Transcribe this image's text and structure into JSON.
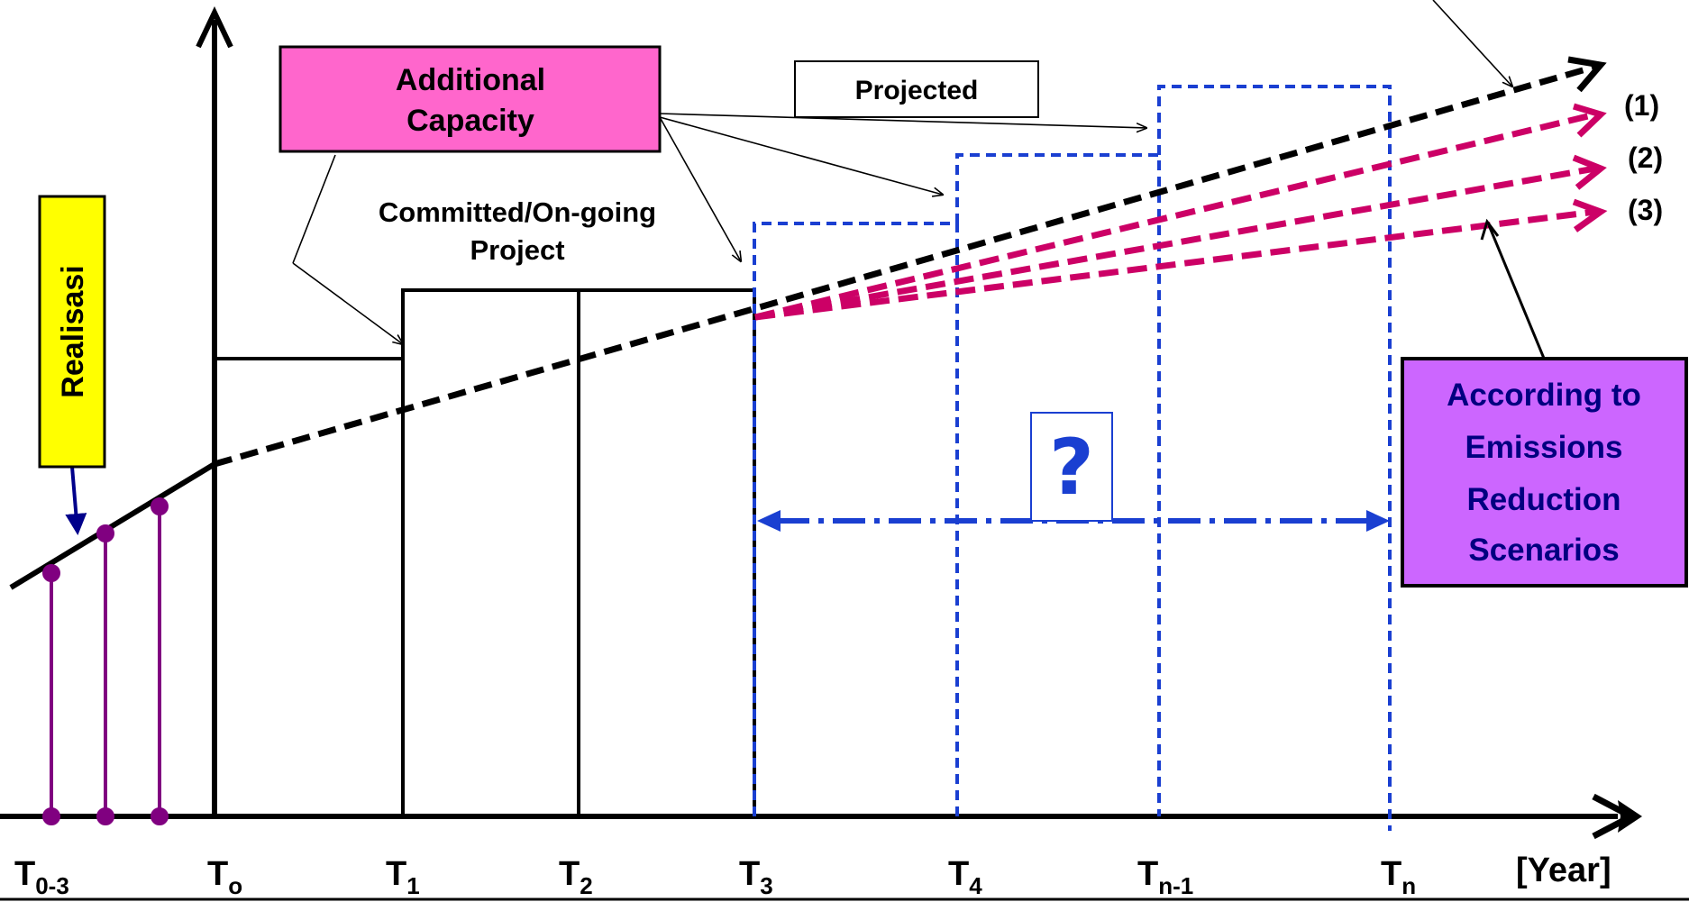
{
  "labels": {
    "additional_capacity_line1": "Additional",
    "additional_capacity_line2": "Capacity",
    "projected": "Projected",
    "committed_line1": "Committed/On-going",
    "committed_line2": "Project",
    "realisasi": "Realisasi",
    "unknown_mark": "?",
    "scenario_line1": "According to",
    "scenario_line2": "Emissions",
    "scenario_line3": "Reduction",
    "scenario_line4": "Scenarios",
    "trend_1": "(1)",
    "trend_2": "(2)",
    "trend_3": "(3)",
    "axis_unit": "[Year]"
  },
  "ticks": [
    {
      "base": "T",
      "sub": "0-3"
    },
    {
      "base": "T",
      "sub": "o"
    },
    {
      "base": "T",
      "sub": "1"
    },
    {
      "base": "T",
      "sub": "2"
    },
    {
      "base": "T",
      "sub": "3"
    },
    {
      "base": "T",
      "sub": "4"
    },
    {
      "base": "T",
      "sub": "n-1"
    },
    {
      "base": "T",
      "sub": "n"
    }
  ],
  "colors": {
    "additional_capacity_fill": "#ff66cc",
    "realisasi_fill": "#ffff00",
    "scenario_fill": "#cc66ff",
    "scenario_text": "#000080",
    "projected_box": "#1a3fd1",
    "scenario_arrows": "#cc0066",
    "historic_stems": "#800080",
    "realisasi_arrow": "#00008b",
    "unknown_mark": "#1a3fd1"
  }
}
